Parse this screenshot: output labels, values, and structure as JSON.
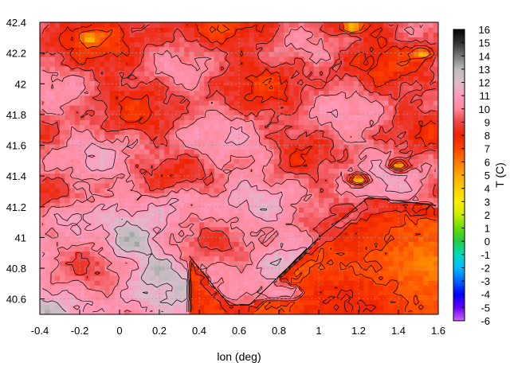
{
  "chart_data": {
    "type": "heatmap",
    "title": "",
    "xlabel": "lon (deg)",
    "ylabel": "",
    "colorbar_label": "T (C)",
    "xlim": [
      -0.4,
      1.6
    ],
    "ylim": [
      40.5,
      42.4
    ],
    "x_ticks": [
      "-0.4",
      "-0.2",
      "0",
      "0.2",
      "0.4",
      "0.6",
      "0.8",
      "1",
      "1.2",
      "1.4",
      "1.6"
    ],
    "y_ticks": [
      "40.6",
      "40.8",
      "41",
      "41.2",
      "41.4",
      "41.6",
      "41.8",
      "42",
      "42.2",
      "42.4"
    ],
    "colorbar_range": [
      -6,
      16
    ],
    "colorbar_ticks": [
      "-6",
      "-5",
      "-4",
      "-3",
      "-2",
      "-1",
      "0",
      "1",
      "2",
      "3",
      "4",
      "5",
      "6",
      "7",
      "8",
      "9",
      "10",
      "11",
      "12",
      "13",
      "14",
      "15",
      "16"
    ],
    "grid": true,
    "contours": true,
    "palette": [
      "#cc66ff",
      "#6600ff",
      "#0000ff",
      "#0066ff",
      "#00bbff",
      "#00ddbb",
      "#22cc44",
      "#66dd00",
      "#ccee00",
      "#ffee00",
      "#ffcc00",
      "#ffaa00",
      "#ff7700",
      "#ff4400",
      "#ee2200",
      "#ee4444",
      "#ff8899",
      "#ff99bb",
      "#ddbbcc",
      "#bbbbbb",
      "#777777",
      "#333333",
      "#000000"
    ],
    "regions": {
      "sea_base_temperature": 7,
      "land_base_temperature": 10,
      "inland_warm_spots": [
        {
          "lon": -0.25,
          "lat": 41.15,
          "value": 12
        },
        {
          "lon": 0.05,
          "lat": 40.95,
          "value": 12
        },
        {
          "lon": 0.2,
          "lat": 40.8,
          "value": 11.5
        },
        {
          "lon": 0.3,
          "lat": 41.25,
          "value": 11.5
        },
        {
          "lon": 0.7,
          "lat": 41.55,
          "value": 11
        }
      ],
      "cold_spots": [
        {
          "lon": 1.2,
          "lat": 41.38,
          "value": 4
        },
        {
          "lon": -0.15,
          "lat": 42.3,
          "value": 4.5
        },
        {
          "lon": 1.17,
          "lat": 42.37,
          "value": 4
        },
        {
          "lon": 1.52,
          "lat": 42.2,
          "value": 4.5
        },
        {
          "lon": 1.4,
          "lat": 41.47,
          "value": 5
        }
      ],
      "delta_warm_area": {
        "lon": 0.8,
        "lat": 40.65,
        "value": 11
      }
    }
  }
}
